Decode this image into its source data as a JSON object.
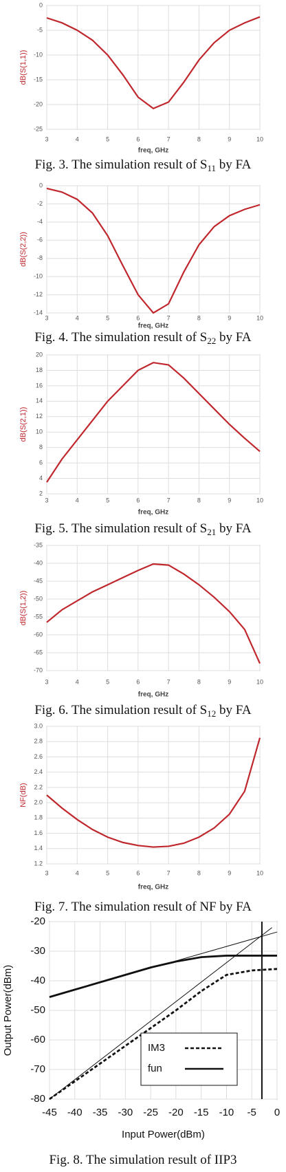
{
  "chart_data": [
    {
      "type": "line",
      "xlabel": "freq, GHz",
      "ylabel": "dB(S(1,1))",
      "ylabel_color": "#c0272d",
      "grid": true,
      "caption": [
        "Fig. 3. The simulation result of S",
        "11",
        " by FA"
      ],
      "xlim": [
        3,
        10
      ],
      "xticks": [
        3,
        4,
        5,
        6,
        7,
        8,
        9,
        10
      ],
      "ylim": [
        -25,
        0
      ],
      "yticks": [
        0,
        -5,
        -10,
        -15,
        -20,
        -25
      ],
      "x": [
        3,
        3.5,
        4,
        4.5,
        5,
        5.5,
        6,
        6.5,
        7,
        7.5,
        8,
        8.5,
        9,
        9.5,
        10
      ],
      "series": [
        {
          "color": "#c0272d",
          "values": [
            -2.5,
            -3.5,
            -5,
            -7,
            -10,
            -14,
            -18.5,
            -20.8,
            -19.5,
            -15.5,
            -11,
            -7.5,
            -5,
            -3.5,
            -2.3
          ]
        }
      ]
    },
    {
      "type": "line",
      "xlabel": "freq, GHz",
      "ylabel": "dB(S(2,2))",
      "ylabel_color": "#c0272d",
      "grid": true,
      "caption": [
        "Fig. 4. The simulation result of S",
        "22",
        " by FA"
      ],
      "xlim": [
        3,
        10
      ],
      "xticks": [
        3,
        4,
        5,
        6,
        7,
        8,
        9,
        10
      ],
      "ylim": [
        -14,
        0
      ],
      "yticks": [
        0,
        -2,
        -4,
        -6,
        -8,
        -10,
        -12,
        -14
      ],
      "x": [
        3,
        3.5,
        4,
        4.5,
        5,
        5.5,
        6,
        6.5,
        7,
        7.5,
        8,
        8.5,
        9,
        9.5,
        10
      ],
      "series": [
        {
          "color": "#c0272d",
          "values": [
            -0.3,
            -0.7,
            -1.5,
            -3,
            -5.5,
            -8.8,
            -12,
            -14,
            -13,
            -9.5,
            -6.5,
            -4.5,
            -3.3,
            -2.6,
            -2.1
          ]
        }
      ]
    },
    {
      "type": "line",
      "xlabel": "freq, GHz",
      "ylabel": "dB(S(2,1))",
      "ylabel_color": "#c0272d",
      "grid": true,
      "caption": [
        "Fig. 5.  The simulation result of S",
        "21",
        " by FA"
      ],
      "xlim": [
        3,
        10
      ],
      "xticks": [
        3,
        4,
        5,
        6,
        7,
        8,
        9,
        10
      ],
      "ylim": [
        2,
        20
      ],
      "yticks": [
        20,
        18,
        16,
        14,
        12,
        10,
        8,
        6,
        4,
        2
      ],
      "x": [
        3,
        3.5,
        4,
        4.5,
        5,
        5.5,
        6,
        6.5,
        7,
        7.5,
        8,
        8.5,
        9,
        9.5,
        10
      ],
      "series": [
        {
          "color": "#c0272d",
          "values": [
            3.5,
            6.5,
            9,
            11.5,
            14,
            16,
            18,
            19,
            18.7,
            17,
            15,
            13,
            11,
            9.2,
            7.5
          ]
        }
      ]
    },
    {
      "type": "line",
      "xlabel": "freq, GHz",
      "ylabel": "dB(S(1,2))",
      "ylabel_color": "#c0272d",
      "grid": true,
      "caption": [
        "Fig. 6.  The simulation result of S",
        "12",
        " by FA"
      ],
      "xlim": [
        3,
        10
      ],
      "xticks": [
        3,
        4,
        5,
        6,
        7,
        8,
        9,
        10
      ],
      "ylim": [
        -70,
        -35
      ],
      "yticks": [
        -35,
        -40,
        -45,
        -50,
        -55,
        -60,
        -65,
        -70
      ],
      "x": [
        3,
        3.5,
        4,
        4.5,
        5,
        5.5,
        6,
        6.5,
        7,
        7.5,
        8,
        8.5,
        9,
        9.5,
        10
      ],
      "series": [
        {
          "color": "#c0272d",
          "values": [
            -56.5,
            -53,
            -50.5,
            -48,
            -46,
            -44,
            -42,
            -40.2,
            -40.5,
            -43,
            -46,
            -49.5,
            -53.5,
            -58.5,
            -68
          ]
        }
      ]
    },
    {
      "type": "line",
      "xlabel": "freq, GHz",
      "ylabel": "NF(dB)",
      "ylabel_color": "#c0272d",
      "grid": true,
      "caption": [
        "Fig. 7. The simulation result of NF by FA"
      ],
      "xlim": [
        3,
        10
      ],
      "xticks": [
        3,
        4,
        5,
        6,
        7,
        8,
        9,
        10
      ],
      "ylim": [
        1.2,
        3
      ],
      "yticks": [
        {
          "value": 3,
          "label": "3.0"
        },
        2.8,
        2.6,
        2.4,
        2.2,
        {
          "value": 2,
          "label": "2.0"
        },
        1.8,
        1.6,
        1.4,
        1.2
      ],
      "x": [
        3,
        3.5,
        4,
        4.5,
        5,
        5.5,
        6,
        6.5,
        7,
        7.5,
        8,
        8.5,
        9,
        9.5,
        10
      ],
      "series": [
        {
          "color": "#c0272d",
          "values": [
            2.1,
            1.93,
            1.78,
            1.65,
            1.55,
            1.48,
            1.44,
            1.42,
            1.43,
            1.47,
            1.55,
            1.67,
            1.85,
            2.15,
            2.85
          ]
        }
      ]
    },
    {
      "type": "line",
      "xlabel": "Input Power(dBm)",
      "ylabel": "Output Power(dBm)",
      "ylabel_color": "#111111",
      "grid": true,
      "caption": [
        "Fig. 8.  The simulation result of IIP3"
      ],
      "legend": "lower right",
      "xlim": [
        -45,
        0
      ],
      "xticks": [
        -45,
        -40,
        -35,
        -30,
        -25,
        -20,
        -15,
        -10,
        -5,
        0
      ],
      "ylim": [
        -80,
        -20
      ],
      "yticks": [
        -20,
        -30,
        -40,
        -50,
        -60,
        -70,
        -80
      ],
      "x": [
        -45,
        -40,
        -35,
        -30,
        -25,
        -20,
        -15,
        -10,
        -5,
        0
      ],
      "vline": -3,
      "series": [
        {
          "name": "IM3",
          "color": "#111111",
          "line_style": "dashed",
          "line_width": "thick",
          "values": [
            -80,
            -74,
            -68,
            -62,
            -56,
            -50,
            -43.5,
            -38,
            -36.5,
            -36
          ]
        },
        {
          "name": "fun",
          "color": "#111111",
          "line_style": "solid",
          "line_width": "thick",
          "values": [
            -45.5,
            -43,
            -40.5,
            -38,
            -35.5,
            -33.5,
            -32,
            -31.5,
            -31.5,
            -31.5
          ]
        },
        {
          "color": "#111111",
          "line_style": "solid",
          "line_width": "thin",
          "x": [
            -45,
            0
          ],
          "values": [
            -45.5,
            -23.5
          ]
        },
        {
          "color": "#111111",
          "line_style": "solid",
          "line_width": "thin",
          "x": [
            -45,
            -1
          ],
          "values": [
            -80,
            -22
          ]
        }
      ]
    }
  ]
}
